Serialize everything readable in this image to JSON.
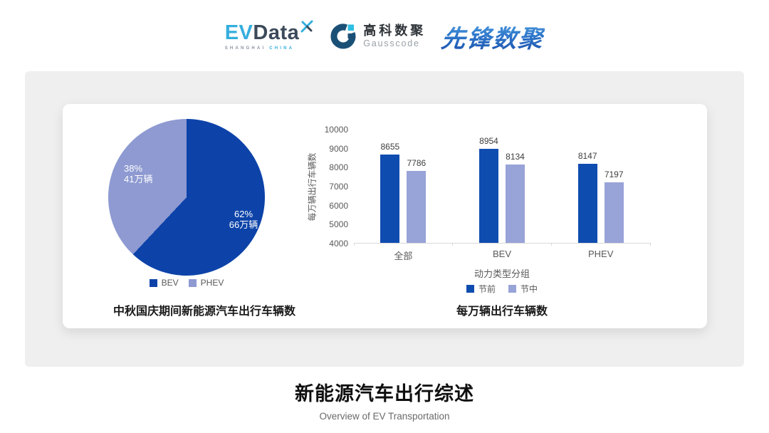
{
  "header": {
    "evdata": {
      "ev": "EV",
      "data": "Data",
      "sub1": "SHANGHAI",
      "sub2": "CHINA"
    },
    "gausscode": {
      "cn": "高科数聚",
      "en": "Gausscode"
    },
    "xianfeng": {
      "text": "先锋数聚"
    }
  },
  "chart_data": [
    {
      "type": "pie",
      "title": "中秋国庆期间新能源汽车出行车辆数",
      "slices": [
        {
          "name": "BEV",
          "percent": 62,
          "label": "62%",
          "value_label": "66万辆",
          "color": "#0d43a9"
        },
        {
          "name": "PHEV",
          "percent": 38,
          "label": "38%",
          "value_label": "41万辆",
          "color": "#8e9ad1"
        }
      ],
      "legend_position": "bottom",
      "start_angle": "top-clockwise"
    },
    {
      "type": "bar",
      "title": "每万辆出行车辆数",
      "xlabel": "动力类型分组",
      "ylabel": "每万辆出行车辆数",
      "categories": [
        "全部",
        "BEV",
        "PHEV"
      ],
      "series": [
        {
          "name": "节前",
          "values": [
            8655,
            8954,
            8147
          ],
          "color": "#0f4cb0"
        },
        {
          "name": "节中",
          "values": [
            7786,
            8134,
            7197
          ],
          "color": "#98a3d8"
        }
      ],
      "ylim": [
        4000,
        10000
      ],
      "ytick_step": 1000,
      "grid": false,
      "legend_position": "bottom"
    }
  ],
  "footer": {
    "title": "新能源汽车出行综述",
    "subtitle": "Overview of EV Transportation"
  }
}
